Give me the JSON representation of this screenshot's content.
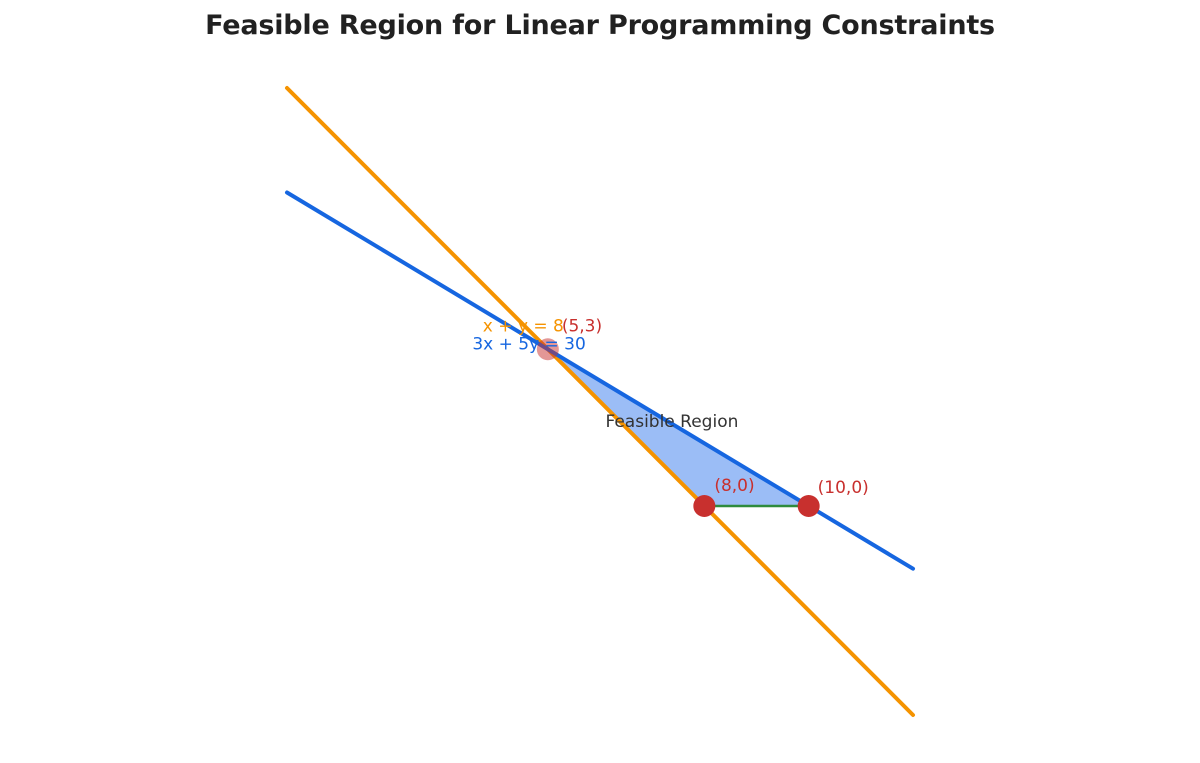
{
  "chart_data": {
    "type": "line",
    "title": "Feasible Region for Linear Programming Constraints",
    "xlabel": "",
    "ylabel": "",
    "xlim": [
      0,
      12
    ],
    "ylim": [
      -4,
      8
    ],
    "grid": false,
    "series": [
      {
        "name": "x + y = 8",
        "color": "#f59300",
        "x": [
          0,
          12
        ],
        "y": [
          8,
          -4
        ]
      },
      {
        "name": "3x + 5y = 30",
        "color": "#1666e0",
        "x": [
          0,
          12
        ],
        "y": [
          6,
          -1.2
        ]
      }
    ],
    "region": {
      "label": "Feasible Region",
      "fill": "#9bbdf6",
      "vertices": [
        [
          5,
          3
        ],
        [
          8,
          0
        ],
        [
          10,
          0
        ]
      ]
    },
    "boundary_segment": {
      "color": "#2e8b3e",
      "x": [
        8,
        10
      ],
      "y": [
        0,
        0
      ]
    },
    "points": [
      {
        "x": 5,
        "y": 3,
        "label": "(5,3)"
      },
      {
        "x": 8,
        "y": 0,
        "label": "(8,0)"
      },
      {
        "x": 10,
        "y": 0,
        "label": "(10,0)"
      }
    ],
    "point_color": "#c8302e"
  }
}
